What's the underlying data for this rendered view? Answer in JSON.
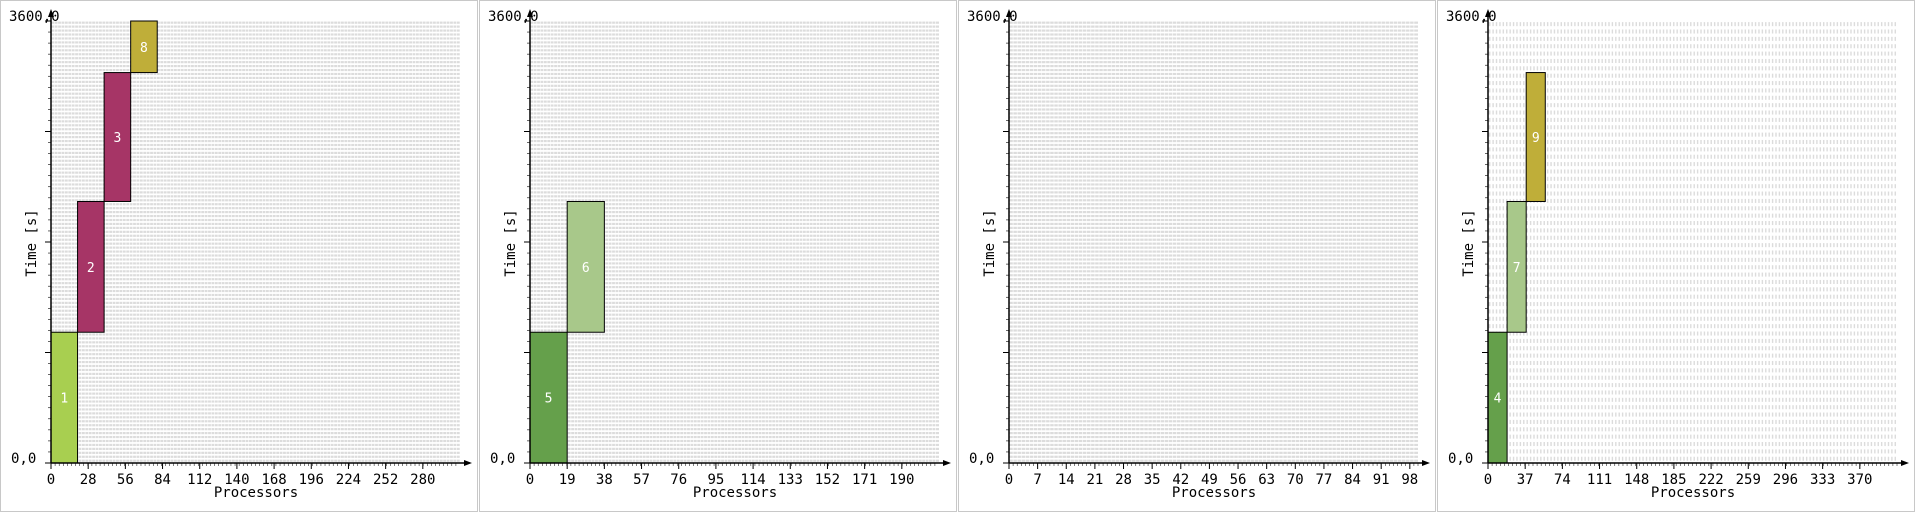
{
  "chart_data": [
    {
      "type": "bar",
      "ylabel": "Time [s]",
      "xlabel": "Processors",
      "ylim": [
        0,
        3600
      ],
      "y_top_label": "3600,0",
      "y_bottom_label": "0,0",
      "x_ticks": [
        0,
        28,
        56,
        84,
        112,
        140,
        168,
        196,
        224,
        252,
        280
      ],
      "x_max": 308,
      "rows": 112,
      "jobs": [
        {
          "id": "1",
          "proc_start": 0,
          "proc_end": 20,
          "t_start": 0,
          "t_end": 1065,
          "color": "#a8cf50"
        },
        {
          "id": "2",
          "proc_start": 20,
          "proc_end": 40,
          "t_start": 1065,
          "t_end": 2130,
          "color": "#a63566"
        },
        {
          "id": "3",
          "proc_start": 40,
          "proc_end": 60,
          "t_start": 2130,
          "t_end": 3180,
          "color": "#a63566"
        },
        {
          "id": "8",
          "proc_start": 60,
          "proc_end": 80,
          "t_start": 3180,
          "t_end": 3600,
          "color": "#bfae39"
        }
      ]
    },
    {
      "type": "bar",
      "ylabel": "Time [s]",
      "xlabel": "Processors",
      "ylim": [
        0,
        3600
      ],
      "y_top_label": "3600,0",
      "y_bottom_label": "0,0",
      "x_ticks": [
        0,
        19,
        38,
        57,
        76,
        95,
        114,
        133,
        152,
        171,
        190
      ],
      "x_max": 209,
      "rows": 112,
      "jobs": [
        {
          "id": "5",
          "proc_start": 0,
          "proc_end": 19,
          "t_start": 0,
          "t_end": 1065,
          "color": "#65a04b"
        },
        {
          "id": "6",
          "proc_start": 19,
          "proc_end": 38,
          "t_start": 1065,
          "t_end": 2130,
          "color": "#a8c88a"
        }
      ]
    },
    {
      "type": "bar",
      "ylabel": "Time [s]",
      "xlabel": "Processors",
      "ylim": [
        0,
        3600
      ],
      "y_top_label": "3600,0",
      "y_bottom_label": "0,0",
      "x_ticks": [
        0,
        7,
        14,
        21,
        28,
        35,
        42,
        49,
        56,
        63,
        70,
        77,
        84,
        91,
        98
      ],
      "x_max": 100,
      "rows": 112,
      "jobs": []
    },
    {
      "type": "bar",
      "ylabel": "Time [s]",
      "xlabel": "Processors",
      "ylim": [
        0,
        3600
      ],
      "y_top_label": "3600,0",
      "y_bottom_label": "0,0",
      "x_ticks": [
        0,
        37,
        74,
        111,
        148,
        185,
        222,
        259,
        296,
        333,
        370
      ],
      "x_max": 407,
      "rows": 60,
      "jobs": [
        {
          "id": "4",
          "proc_start": 0,
          "proc_end": 19,
          "t_start": 0,
          "t_end": 1065,
          "color": "#65a04b"
        },
        {
          "id": "7",
          "proc_start": 19,
          "proc_end": 38,
          "t_start": 1065,
          "t_end": 2130,
          "color": "#a8c88a"
        },
        {
          "id": "9",
          "proc_start": 38,
          "proc_end": 57,
          "t_start": 2130,
          "t_end": 3180,
          "color": "#bfae39"
        }
      ]
    }
  ]
}
